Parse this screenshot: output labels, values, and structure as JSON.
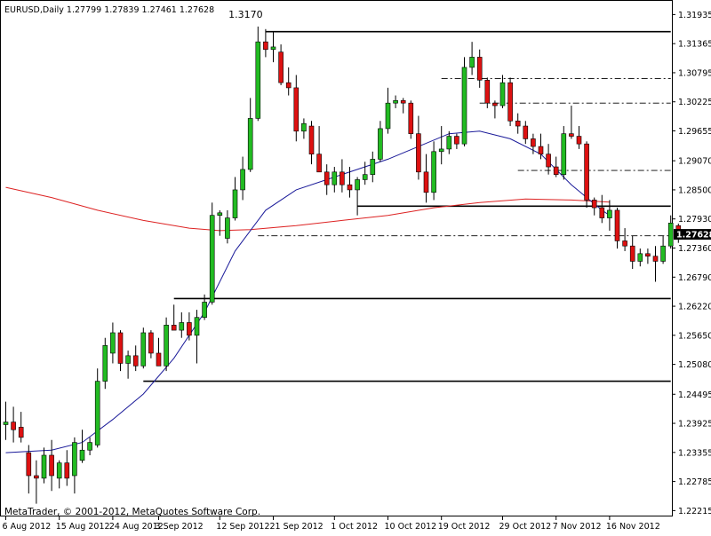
{
  "chart_data": {
    "type": "candlestick",
    "symbol_header": "EURUSD,Daily  1.27799 1.27839 1.27461 1.27628",
    "copyright": "MetaTrader, © 2001-2012, MetaQuotes Software Corp.",
    "ylim": [
      1.221,
      1.3222
    ],
    "y_ticks": [
      1.31935,
      1.31365,
      1.30795,
      1.30225,
      1.29655,
      1.2907,
      1.285,
      1.2793,
      1.2736,
      1.2679,
      1.2622,
      1.2565,
      1.2508,
      1.24495,
      1.23925,
      1.23355,
      1.22785,
      1.22215
    ],
    "y_tick_labels": [
      "1.31935",
      "1.31365",
      "1.30795",
      "1.30225",
      "1.29655",
      "1.29070",
      "1.28500",
      "1.27930",
      "1.27360",
      "1.26790",
      "1.26220",
      "1.25650",
      "1.25080",
      "1.24495",
      "1.23925",
      "1.23355",
      "1.22785",
      "1.22215"
    ],
    "x_labels": [
      {
        "i": 0,
        "label": "6 Aug 2012"
      },
      {
        "i": 7,
        "label": "15 Aug 2012"
      },
      {
        "i": 14,
        "label": "24 Aug 2012"
      },
      {
        "i": 20,
        "label": "3 Sep 2012"
      },
      {
        "i": 28,
        "label": "12 Sep 2012"
      },
      {
        "i": 35,
        "label": "21 Sep 2012"
      },
      {
        "i": 43,
        "label": "1 Oct 2012"
      },
      {
        "i": 50,
        "label": "10 Oct 2012"
      },
      {
        "i": 57,
        "label": "19 Oct 2012"
      },
      {
        "i": 65,
        "label": "29 Oct 2012"
      },
      {
        "i": 72,
        "label": "7 Nov 2012"
      },
      {
        "i": 79,
        "label": "16 Nov 2012"
      }
    ],
    "current_price": 1.27628,
    "current_price_label": "1.27628",
    "annotations": [
      {
        "i": 31,
        "price": 1.317,
        "label": "1.3170"
      }
    ],
    "colors": {
      "up": "#22bb22",
      "down": "#dd1111",
      "ma_slow": "#dd2222",
      "ma_fast": "#1a1a99",
      "tag": "#000000"
    },
    "candles": [
      {
        "o": 1.239,
        "h": 1.2435,
        "l": 1.236,
        "c": 1.2395
      },
      {
        "o": 1.2395,
        "h": 1.2425,
        "l": 1.2355,
        "c": 1.238
      },
      {
        "o": 1.2385,
        "h": 1.2415,
        "l": 1.2355,
        "c": 1.2365
      },
      {
        "o": 1.2335,
        "h": 1.235,
        "l": 1.2255,
        "c": 1.229
      },
      {
        "o": 1.229,
        "h": 1.232,
        "l": 1.2235,
        "c": 1.2285
      },
      {
        "o": 1.2285,
        "h": 1.2345,
        "l": 1.2275,
        "c": 1.233
      },
      {
        "o": 1.233,
        "h": 1.236,
        "l": 1.226,
        "c": 1.229
      },
      {
        "o": 1.2285,
        "h": 1.232,
        "l": 1.2265,
        "c": 1.2315
      },
      {
        "o": 1.2315,
        "h": 1.234,
        "l": 1.227,
        "c": 1.2285
      },
      {
        "o": 1.229,
        "h": 1.2365,
        "l": 1.2255,
        "c": 1.2355
      },
      {
        "o": 1.232,
        "h": 1.238,
        "l": 1.2315,
        "c": 1.234
      },
      {
        "o": 1.234,
        "h": 1.2365,
        "l": 1.233,
        "c": 1.2355
      },
      {
        "o": 1.235,
        "h": 1.25,
        "l": 1.2345,
        "c": 1.2475
      },
      {
        "o": 1.2475,
        "h": 1.256,
        "l": 1.246,
        "c": 1.2545
      },
      {
        "o": 1.253,
        "h": 1.259,
        "l": 1.251,
        "c": 1.257
      },
      {
        "o": 1.257,
        "h": 1.2575,
        "l": 1.2495,
        "c": 1.251
      },
      {
        "o": 1.251,
        "h": 1.2535,
        "l": 1.248,
        "c": 1.2525
      },
      {
        "o": 1.2525,
        "h": 1.2545,
        "l": 1.2495,
        "c": 1.2505
      },
      {
        "o": 1.2505,
        "h": 1.258,
        "l": 1.25,
        "c": 1.257
      },
      {
        "o": 1.257,
        "h": 1.2575,
        "l": 1.252,
        "c": 1.253
      },
      {
        "o": 1.253,
        "h": 1.256,
        "l": 1.2505,
        "c": 1.2505
      },
      {
        "o": 1.2505,
        "h": 1.26,
        "l": 1.2495,
        "c": 1.2585
      },
      {
        "o": 1.2585,
        "h": 1.2625,
        "l": 1.258,
        "c": 1.2575
      },
      {
        "o": 1.2575,
        "h": 1.261,
        "l": 1.256,
        "c": 1.259
      },
      {
        "o": 1.259,
        "h": 1.261,
        "l": 1.2555,
        "c": 1.2565
      },
      {
        "o": 1.2565,
        "h": 1.2615,
        "l": 1.251,
        "c": 1.26
      },
      {
        "o": 1.26,
        "h": 1.2645,
        "l": 1.2595,
        "c": 1.263
      },
      {
        "o": 1.263,
        "h": 1.2825,
        "l": 1.2625,
        "c": 1.28
      },
      {
        "o": 1.28,
        "h": 1.281,
        "l": 1.276,
        "c": 1.2805
      },
      {
        "o": 1.2755,
        "h": 1.281,
        "l": 1.2745,
        "c": 1.2795
      },
      {
        "o": 1.2795,
        "h": 1.2875,
        "l": 1.279,
        "c": 1.285
      },
      {
        "o": 1.285,
        "h": 1.2915,
        "l": 1.283,
        "c": 1.289
      },
      {
        "o": 1.289,
        "h": 1.303,
        "l": 1.2885,
        "c": 1.299
      },
      {
        "o": 1.299,
        "h": 1.317,
        "l": 1.2985,
        "c": 1.314
      },
      {
        "o": 1.314,
        "h": 1.3165,
        "l": 1.311,
        "c": 1.3125
      },
      {
        "o": 1.3125,
        "h": 1.316,
        "l": 1.31,
        "c": 1.313
      },
      {
        "o": 1.312,
        "h": 1.3135,
        "l": 1.3055,
        "c": 1.306
      },
      {
        "o": 1.306,
        "h": 1.309,
        "l": 1.3035,
        "c": 1.305
      },
      {
        "o": 1.305,
        "h": 1.3075,
        "l": 1.2945,
        "c": 1.2965
      },
      {
        "o": 1.2965,
        "h": 1.299,
        "l": 1.295,
        "c": 1.298
      },
      {
        "o": 1.2975,
        "h": 1.2985,
        "l": 1.29,
        "c": 1.292
      },
      {
        "o": 1.292,
        "h": 1.2975,
        "l": 1.2885,
        "c": 1.2885
      },
      {
        "o": 1.2885,
        "h": 1.29,
        "l": 1.284,
        "c": 1.286
      },
      {
        "o": 1.286,
        "h": 1.2895,
        "l": 1.2845,
        "c": 1.2885
      },
      {
        "o": 1.2885,
        "h": 1.291,
        "l": 1.2845,
        "c": 1.286
      },
      {
        "o": 1.286,
        "h": 1.2895,
        "l": 1.2835,
        "c": 1.285
      },
      {
        "o": 1.285,
        "h": 1.2875,
        "l": 1.28,
        "c": 1.287
      },
      {
        "o": 1.287,
        "h": 1.2905,
        "l": 1.286,
        "c": 1.288
      },
      {
        "o": 1.288,
        "h": 1.2925,
        "l": 1.2865,
        "c": 1.291
      },
      {
        "o": 1.291,
        "h": 1.2985,
        "l": 1.2905,
        "c": 1.297
      },
      {
        "o": 1.297,
        "h": 1.305,
        "l": 1.296,
        "c": 1.302
      },
      {
        "o": 1.302,
        "h": 1.3035,
        "l": 1.301,
        "c": 1.3025
      },
      {
        "o": 1.3025,
        "h": 1.303,
        "l": 1.3,
        "c": 1.302
      },
      {
        "o": 1.302,
        "h": 1.3025,
        "l": 1.295,
        "c": 1.296
      },
      {
        "o": 1.296,
        "h": 1.2995,
        "l": 1.287,
        "c": 1.2885
      },
      {
        "o": 1.2885,
        "h": 1.292,
        "l": 1.2825,
        "c": 1.2845
      },
      {
        "o": 1.2845,
        "h": 1.2945,
        "l": 1.283,
        "c": 1.2925
      },
      {
        "o": 1.2925,
        "h": 1.2975,
        "l": 1.29,
        "c": 1.293
      },
      {
        "o": 1.293,
        "h": 1.2965,
        "l": 1.292,
        "c": 1.2955
      },
      {
        "o": 1.2955,
        "h": 1.296,
        "l": 1.293,
        "c": 1.294
      },
      {
        "o": 1.294,
        "h": 1.311,
        "l": 1.2935,
        "c": 1.309
      },
      {
        "o": 1.309,
        "h": 1.314,
        "l": 1.3075,
        "c": 1.311
      },
      {
        "o": 1.311,
        "h": 1.3125,
        "l": 1.305,
        "c": 1.3065
      },
      {
        "o": 1.3065,
        "h": 1.307,
        "l": 1.301,
        "c": 1.302
      },
      {
        "o": 1.302,
        "h": 1.3025,
        "l": 1.299,
        "c": 1.3015
      },
      {
        "o": 1.3015,
        "h": 1.3075,
        "l": 1.301,
        "c": 1.306
      },
      {
        "o": 1.306,
        "h": 1.307,
        "l": 1.2975,
        "c": 1.2985
      }
    ],
    "candles_tail": [
      {
        "o": 1.2985,
        "h": 1.3,
        "l": 1.296,
        "c": 1.2975
      },
      {
        "o": 1.2975,
        "h": 1.2985,
        "l": 1.294,
        "c": 1.295
      },
      {
        "o": 1.295,
        "h": 1.296,
        "l": 1.292,
        "c": 1.2935
      },
      {
        "o": 1.2935,
        "h": 1.296,
        "l": 1.291,
        "c": 1.292
      },
      {
        "o": 1.292,
        "h": 1.294,
        "l": 1.288,
        "c": 1.2895
      },
      {
        "o": 1.2895,
        "h": 1.2915,
        "l": 1.2875,
        "c": 1.288
      },
      {
        "o": 1.288,
        "h": 1.2975,
        "l": 1.287,
        "c": 1.296
      },
      {
        "o": 1.296,
        "h": 1.3015,
        "l": 1.295,
        "c": 1.2955
      },
      {
        "o": 1.2955,
        "h": 1.2975,
        "l": 1.293,
        "c": 1.294
      },
      {
        "o": 1.294,
        "h": 1.2945,
        "l": 1.2815,
        "c": 1.283
      },
      {
        "o": 1.283,
        "h": 1.2835,
        "l": 1.28,
        "c": 1.2815
      },
      {
        "o": 1.2815,
        "h": 1.284,
        "l": 1.2785,
        "c": 1.2795
      },
      {
        "o": 1.2795,
        "h": 1.283,
        "l": 1.277,
        "c": 1.281
      },
      {
        "o": 1.281,
        "h": 1.2815,
        "l": 1.2735,
        "c": 1.275
      },
      {
        "o": 1.275,
        "h": 1.2775,
        "l": 1.273,
        "c": 1.274
      },
      {
        "o": 1.274,
        "h": 1.276,
        "l": 1.2695,
        "c": 1.271
      },
      {
        "o": 1.271,
        "h": 1.2735,
        "l": 1.27,
        "c": 1.2725
      },
      {
        "o": 1.2725,
        "h": 1.2735,
        "l": 1.2705,
        "c": 1.272
      },
      {
        "o": 1.272,
        "h": 1.274,
        "l": 1.267,
        "c": 1.271
      },
      {
        "o": 1.271,
        "h": 1.276,
        "l": 1.2705,
        "c": 1.274
      },
      {
        "o": 1.274,
        "h": 1.28,
        "l": 1.2735,
        "c": 1.2785
      },
      {
        "o": 1.27799,
        "h": 1.27839,
        "l": 1.27461,
        "c": 1.27628
      }
    ],
    "ma_slow": [
      {
        "i": 0,
        "v": 1.2855
      },
      {
        "i": 6,
        "v": 1.2835
      },
      {
        "i": 12,
        "v": 1.281
      },
      {
        "i": 18,
        "v": 1.279
      },
      {
        "i": 24,
        "v": 1.2775
      },
      {
        "i": 28,
        "v": 1.277
      },
      {
        "i": 32,
        "v": 1.2772
      },
      {
        "i": 38,
        "v": 1.278
      },
      {
        "i": 44,
        "v": 1.279
      },
      {
        "i": 50,
        "v": 1.28
      },
      {
        "i": 56,
        "v": 1.2815
      },
      {
        "i": 62,
        "v": 1.2825
      },
      {
        "i": 68,
        "v": 1.2832
      },
      {
        "i": 74,
        "v": 1.283
      },
      {
        "i": 79,
        "v": 1.2826
      }
    ],
    "ma_fast": [
      {
        "i": 0,
        "v": 1.2335
      },
      {
        "i": 6,
        "v": 1.234
      },
      {
        "i": 10,
        "v": 1.2355
      },
      {
        "i": 14,
        "v": 1.24
      },
      {
        "i": 18,
        "v": 1.245
      },
      {
        "i": 22,
        "v": 1.252
      },
      {
        "i": 26,
        "v": 1.261
      },
      {
        "i": 30,
        "v": 1.273
      },
      {
        "i": 34,
        "v": 1.281
      },
      {
        "i": 38,
        "v": 1.285
      },
      {
        "i": 42,
        "v": 1.287
      },
      {
        "i": 46,
        "v": 1.289
      },
      {
        "i": 50,
        "v": 1.291
      },
      {
        "i": 54,
        "v": 1.2935
      },
      {
        "i": 58,
        "v": 1.296
      },
      {
        "i": 62,
        "v": 1.2965
      },
      {
        "i": 66,
        "v": 1.295
      },
      {
        "i": 70,
        "v": 1.292
      },
      {
        "i": 74,
        "v": 1.286
      },
      {
        "i": 78,
        "v": 1.281
      },
      {
        "i": 79,
        "v": 1.28
      }
    ],
    "levels": [
      {
        "from": 34,
        "to": 87,
        "price": 1.316,
        "style": "solid"
      },
      {
        "from": 57,
        "to": 87,
        "price": 1.3068,
        "style": "dashdot"
      },
      {
        "from": 62,
        "to": 87,
        "price": 1.302,
        "style": "dashdot"
      },
      {
        "from": 67,
        "to": 87,
        "price": 1.2888,
        "style": "dashdot"
      },
      {
        "from": 46,
        "to": 87,
        "price": 1.2818,
        "style": "solid"
      },
      {
        "from": 33,
        "to": 87,
        "price": 1.276,
        "style": "dashdot"
      },
      {
        "from": 22,
        "to": 87,
        "price": 1.2637,
        "style": "solid"
      },
      {
        "from": 18,
        "to": 87,
        "price": 1.2475,
        "style": "solid"
      }
    ]
  }
}
